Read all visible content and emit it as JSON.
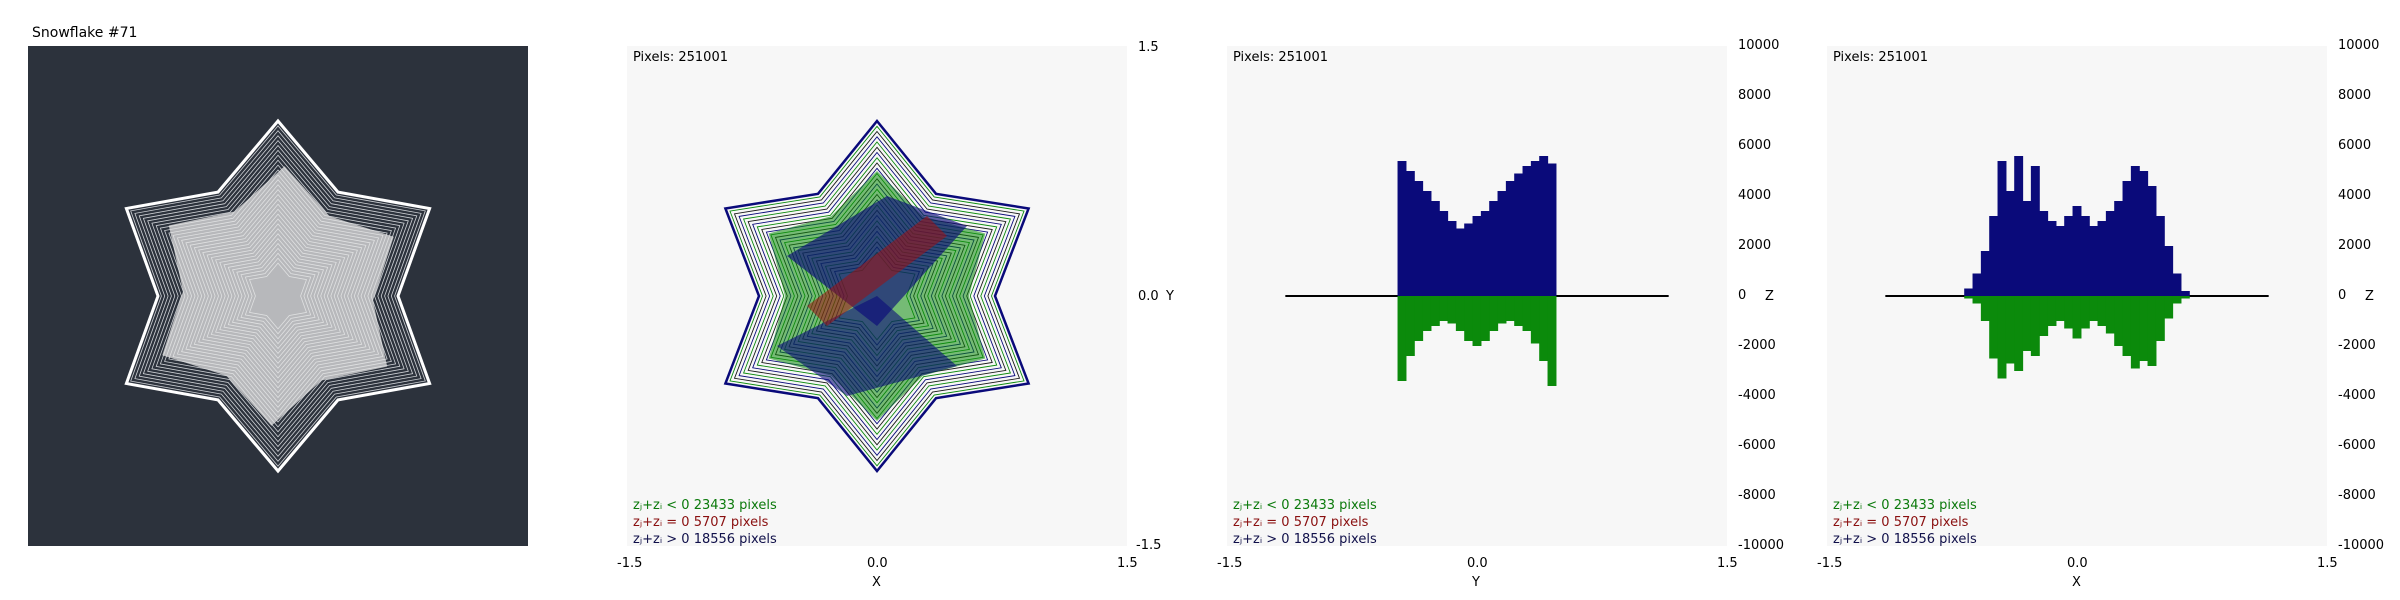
{
  "panel1": {
    "title": "Snowflake #71"
  },
  "pixels_label": "Pixels: 251001",
  "legend": [
    {
      "text": "zⱼ+zᵢ < 0  23433 pixels",
      "color": "#0b7a0b"
    },
    {
      "text": "zⱼ+zᵢ = 0  5707 pixels",
      "color": "#8a1010"
    },
    {
      "text": "zⱼ+zᵢ > 0  18556 pixels",
      "color": "#10104a"
    }
  ],
  "colors": {
    "green": "#0b8a0b",
    "red": "#a01010",
    "blue": "#0a0a7a",
    "dark_bg": "#2c323c"
  },
  "chart_data": [
    {
      "type": "scatter",
      "panel": "XY projection",
      "xlabel": "X",
      "ylabel": "Y",
      "xlim": [
        -1.5,
        1.5
      ],
      "ylim": [
        -1.5,
        1.5
      ],
      "x_ticks": [
        "-1.5",
        "0.0",
        "1.5"
      ],
      "y_ticks": [
        "1.5",
        "0.0",
        "-1.5"
      ]
    },
    {
      "type": "bar",
      "panel": "YZ projection",
      "xlabel": "Y",
      "ylabel": "Z",
      "xlim": [
        -1.5,
        1.5
      ],
      "ylim": [
        -10000,
        10000
      ],
      "x_ticks": [
        "-1.5",
        "0.0",
        "1.5"
      ],
      "y_ticks": [
        "10000",
        "8000",
        "6000",
        "4000",
        "2000",
        "0",
        "-2000",
        "-4000",
        "-6000",
        "-8000",
        "-10000"
      ],
      "series": [
        {
          "color": "blue",
          "x": [
            -0.45,
            -0.4,
            -0.35,
            -0.3,
            -0.25,
            -0.2,
            -0.15,
            -0.1,
            -0.05,
            0.0,
            0.05,
            0.1,
            0.15,
            0.2,
            0.25,
            0.3,
            0.35,
            0.4,
            0.45
          ],
          "values": [
            5400,
            5000,
            4600,
            4200,
            3800,
            3400,
            3000,
            2700,
            2900,
            3200,
            3400,
            3800,
            4200,
            4600,
            4900,
            5200,
            5400,
            5600,
            5300
          ]
        },
        {
          "color": "green",
          "x": [
            -0.45,
            -0.4,
            -0.35,
            -0.3,
            -0.25,
            -0.2,
            -0.15,
            -0.1,
            -0.05,
            0.0,
            0.05,
            0.1,
            0.15,
            0.2,
            0.25,
            0.3,
            0.35,
            0.4,
            0.45
          ],
          "values": [
            -3400,
            -2400,
            -1800,
            -1400,
            -1200,
            -1000,
            -1100,
            -1400,
            -1800,
            -2000,
            -1800,
            -1400,
            -1100,
            -1000,
            -1200,
            -1400,
            -1900,
            -2600,
            -3600
          ]
        }
      ]
    },
    {
      "type": "bar",
      "panel": "XZ projection",
      "xlabel": "X",
      "ylabel": "Z",
      "xlim": [
        -1.5,
        1.5
      ],
      "ylim": [
        -10000,
        10000
      ],
      "x_ticks": [
        "-1.5",
        "0.0",
        "1.5"
      ],
      "y_ticks": [
        "10000",
        "8000",
        "6000",
        "4000",
        "2000",
        "0",
        "-2000",
        "-4000",
        "-6000",
        "-8000",
        "-10000"
      ],
      "series": [
        {
          "color": "blue",
          "x": [
            -0.65,
            -0.6,
            -0.55,
            -0.5,
            -0.45,
            -0.4,
            -0.35,
            -0.3,
            -0.25,
            -0.2,
            -0.15,
            -0.1,
            -0.05,
            0.0,
            0.05,
            0.1,
            0.15,
            0.2,
            0.25,
            0.3,
            0.35,
            0.4,
            0.45,
            0.5,
            0.55,
            0.6,
            0.65
          ],
          "values": [
            300,
            900,
            1800,
            3200,
            5400,
            4200,
            5600,
            3800,
            5200,
            3400,
            3000,
            2800,
            3200,
            3600,
            3200,
            2800,
            3000,
            3400,
            3800,
            4600,
            5200,
            5000,
            4400,
            3200,
            2000,
            900,
            200
          ]
        },
        {
          "color": "green",
          "x": [
            -0.65,
            -0.6,
            -0.55,
            -0.5,
            -0.45,
            -0.4,
            -0.35,
            -0.3,
            -0.25,
            -0.2,
            -0.15,
            -0.1,
            -0.05,
            0.0,
            0.05,
            0.1,
            0.15,
            0.2,
            0.25,
            0.3,
            0.35,
            0.4,
            0.45,
            0.5,
            0.55,
            0.6,
            0.65
          ],
          "values": [
            -100,
            -300,
            -1000,
            -2500,
            -3300,
            -2700,
            -3000,
            -2200,
            -2400,
            -1600,
            -1200,
            -1000,
            -1300,
            -1700,
            -1300,
            -1000,
            -1200,
            -1500,
            -2000,
            -2400,
            -2900,
            -2600,
            -2800,
            -1800,
            -900,
            -300,
            -100
          ]
        }
      ]
    }
  ]
}
